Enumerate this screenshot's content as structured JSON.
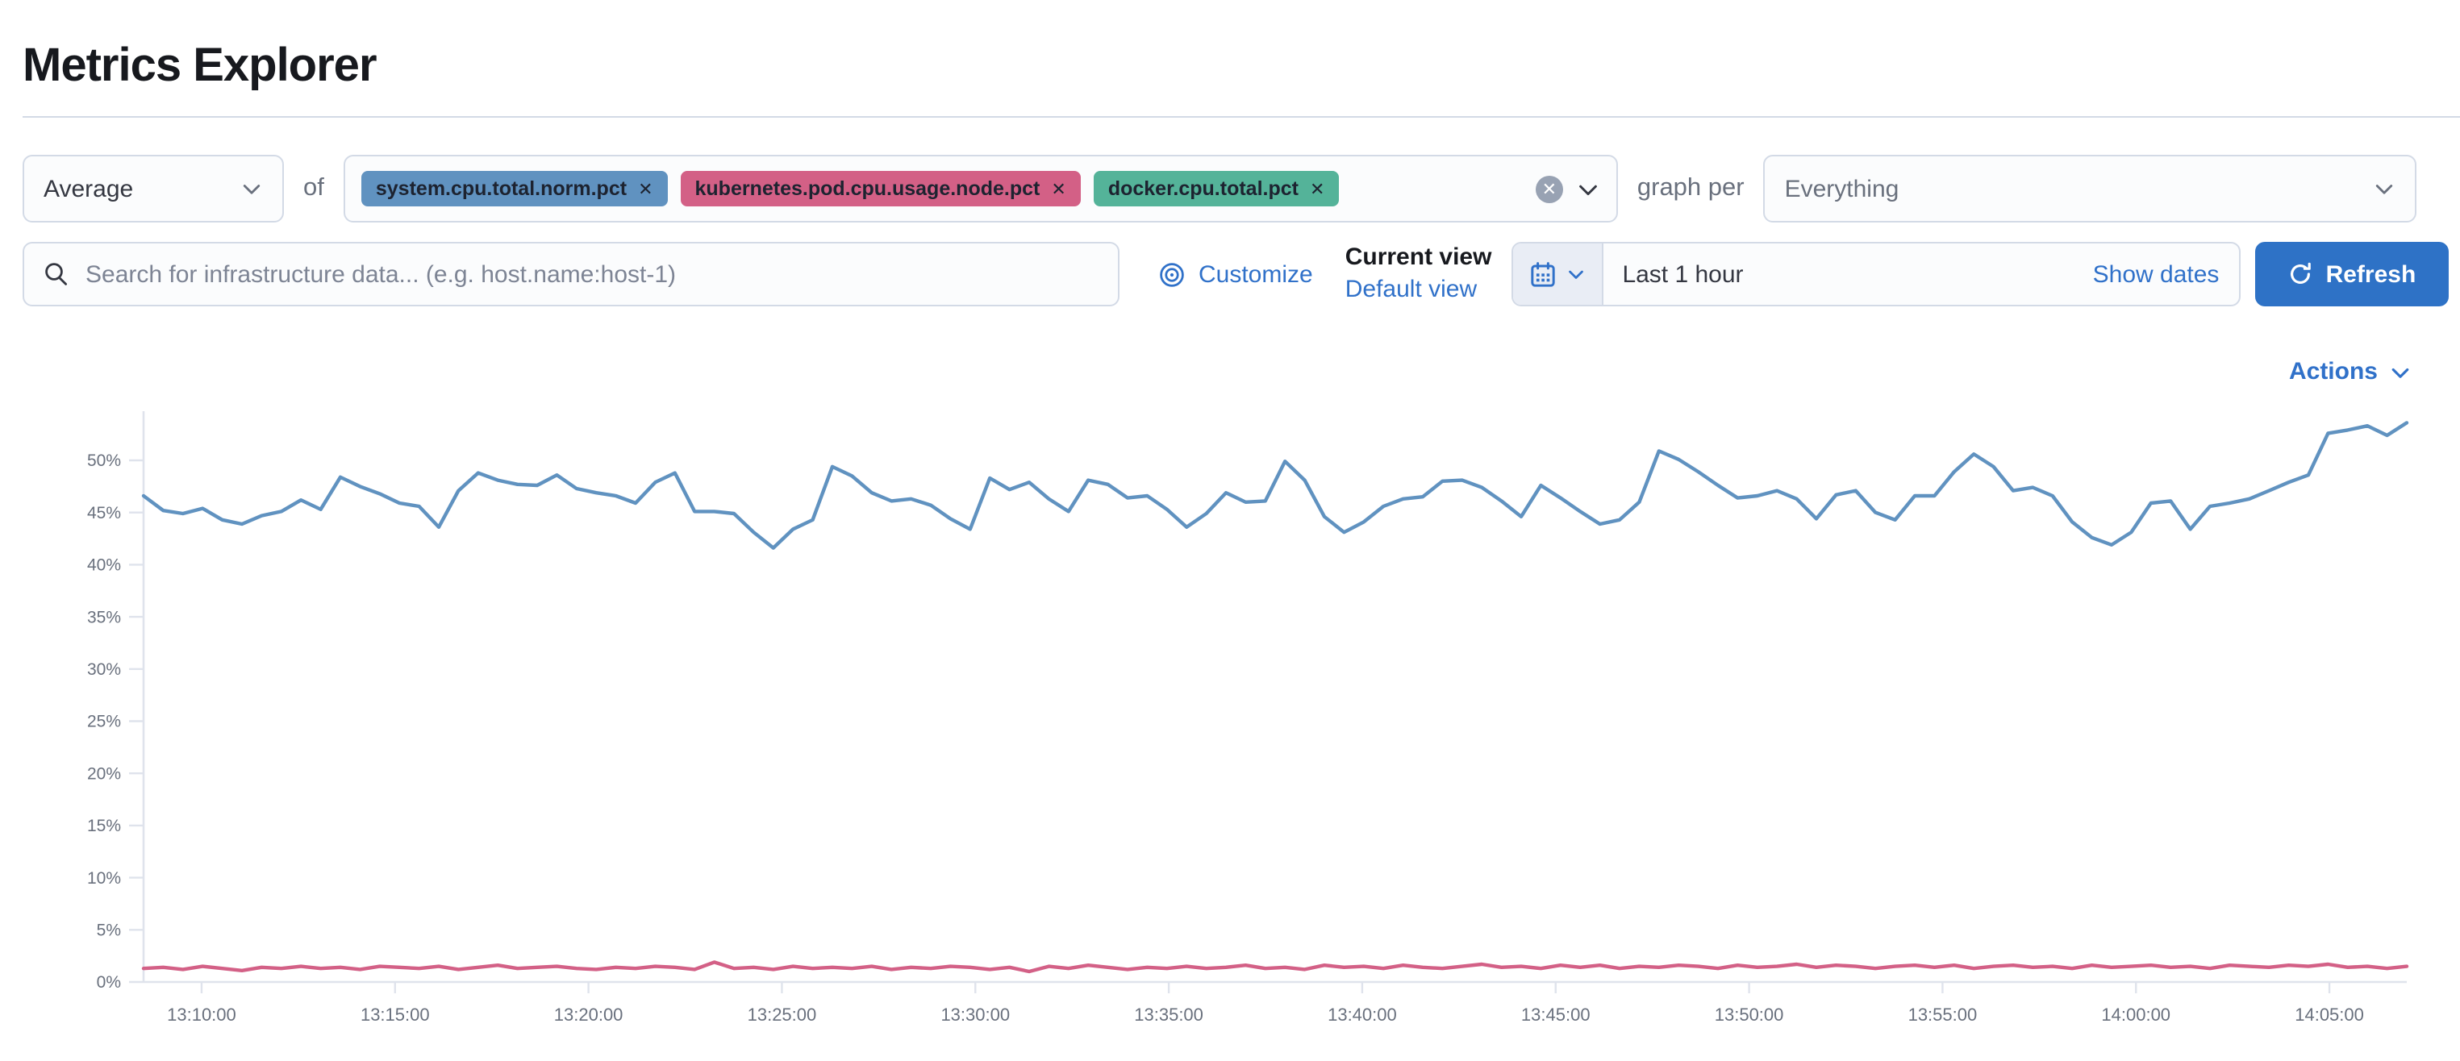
{
  "page": {
    "title": "Metrics Explorer"
  },
  "toolbar": {
    "aggregation": {
      "value": "Average"
    },
    "of_label": "of",
    "metrics": [
      {
        "label": "system.cpu.total.norm.pct",
        "color": "#6092C0",
        "remove_icon": "✕"
      },
      {
        "label": "kubernetes.pod.cpu.usage.node.pct",
        "color": "#D36086",
        "remove_icon": "✕"
      },
      {
        "label": "docker.cpu.total.pct",
        "color": "#54B399",
        "remove_icon": "✕"
      }
    ],
    "clear_icon": "✕",
    "graph_per_label": "graph per",
    "group_by": {
      "value": "Everything"
    }
  },
  "search": {
    "placeholder": "Search for infrastructure data... (e.g. host.name:host-1)"
  },
  "view_controls": {
    "customize_label": "Customize",
    "current_view_label": "Current view",
    "default_view_label": "Default view"
  },
  "time_picker": {
    "value": "Last 1 hour",
    "show_dates_label": "Show dates",
    "refresh_label": "Refresh"
  },
  "chart": {
    "actions_label": "Actions"
  },
  "colors": {
    "link_blue": "#3071c9",
    "button_blue": "#2e72c6",
    "axis_line": "#dfe3ec",
    "tick_label": "#69707d"
  },
  "chart_data": {
    "type": "line",
    "title": "",
    "xlabel": "",
    "ylabel": "",
    "legend": "none",
    "grid": false,
    "ylim": [
      0,
      55
    ],
    "y_tick_values": [
      0,
      5,
      10,
      15,
      20,
      25,
      30,
      35,
      40,
      45,
      50
    ],
    "y_tick_labels": [
      "0%",
      "5%",
      "10%",
      "15%",
      "20%",
      "25%",
      "30%",
      "35%",
      "40%",
      "45%",
      "50%"
    ],
    "x_tick_labels": [
      "13:10:00",
      "13:15:00",
      "13:20:00",
      "13:25:00",
      "13:30:00",
      "13:35:00",
      "13:40:00",
      "13:45:00",
      "13:50:00",
      "13:55:00",
      "14:00:00",
      "14:05:00"
    ],
    "x_tick_seconds": [
      0,
      300,
      600,
      900,
      1200,
      1500,
      1800,
      2100,
      2400,
      2700,
      3000,
      3300
    ],
    "x_domain_seconds": [
      -90,
      3420
    ],
    "series": [
      {
        "name": "system.cpu.total.norm.pct",
        "color": "#6092C0",
        "unit": "%",
        "values": [
          46.6,
          45.2,
          44.9,
          45.4,
          44.3,
          43.9,
          44.7,
          45.1,
          46.2,
          45.3,
          48.4,
          47.5,
          46.8,
          45.9,
          45.6,
          43.6,
          47.1,
          48.8,
          48.1,
          47.7,
          47.6,
          48.6,
          47.3,
          46.9,
          46.6,
          45.9,
          47.9,
          48.8,
          45.1,
          45.1,
          44.9,
          43.1,
          41.6,
          43.4,
          44.3,
          49.4,
          48.5,
          46.9,
          46.1,
          46.3,
          45.7,
          44.4,
          43.4,
          48.3,
          47.2,
          47.9,
          46.3,
          45.1,
          48.1,
          47.7,
          46.4,
          46.6,
          45.3,
          43.6,
          44.9,
          46.9,
          46.0,
          46.1,
          49.9,
          48.1,
          44.6,
          43.1,
          44.1,
          45.6,
          46.3,
          46.5,
          48.0,
          48.1,
          47.4,
          46.1,
          44.6,
          47.6,
          46.4,
          45.1,
          43.9,
          44.3,
          46.0,
          50.9,
          50.1,
          48.9,
          47.6,
          46.4,
          46.6,
          47.1,
          46.3,
          44.4,
          46.7,
          47.1,
          45.0,
          44.3,
          46.6,
          46.6,
          48.9,
          50.6,
          49.4,
          47.1,
          47.4,
          46.6,
          44.1,
          42.6,
          41.9,
          43.1,
          45.9,
          46.1,
          43.4,
          45.6,
          45.9,
          46.3,
          47.1,
          47.9,
          48.6,
          52.6,
          52.9,
          53.3,
          52.4,
          53.6
        ]
      },
      {
        "name": "kubernetes.pod.cpu.usage.node.pct",
        "color": "#D36086",
        "unit": "%",
        "values": [
          1.3,
          1.4,
          1.2,
          1.5,
          1.3,
          1.1,
          1.4,
          1.3,
          1.5,
          1.3,
          1.4,
          1.2,
          1.5,
          1.4,
          1.3,
          1.5,
          1.2,
          1.4,
          1.6,
          1.3,
          1.4,
          1.5,
          1.3,
          1.2,
          1.4,
          1.3,
          1.5,
          1.4,
          1.2,
          1.9,
          1.3,
          1.4,
          1.2,
          1.5,
          1.3,
          1.4,
          1.3,
          1.5,
          1.2,
          1.4,
          1.3,
          1.5,
          1.4,
          1.2,
          1.4,
          1.0,
          1.5,
          1.3,
          1.6,
          1.4,
          1.2,
          1.4,
          1.3,
          1.5,
          1.3,
          1.4,
          1.6,
          1.3,
          1.4,
          1.2,
          1.6,
          1.4,
          1.5,
          1.3,
          1.6,
          1.4,
          1.3,
          1.5,
          1.7,
          1.4,
          1.5,
          1.3,
          1.6,
          1.4,
          1.6,
          1.3,
          1.5,
          1.4,
          1.6,
          1.5,
          1.3,
          1.6,
          1.4,
          1.5,
          1.7,
          1.4,
          1.6,
          1.5,
          1.3,
          1.5,
          1.6,
          1.4,
          1.6,
          1.3,
          1.5,
          1.6,
          1.4,
          1.5,
          1.3,
          1.6,
          1.4,
          1.5,
          1.6,
          1.4,
          1.5,
          1.3,
          1.6,
          1.5,
          1.4,
          1.6,
          1.5,
          1.7,
          1.4,
          1.5,
          1.3,
          1.5
        ]
      }
    ]
  }
}
